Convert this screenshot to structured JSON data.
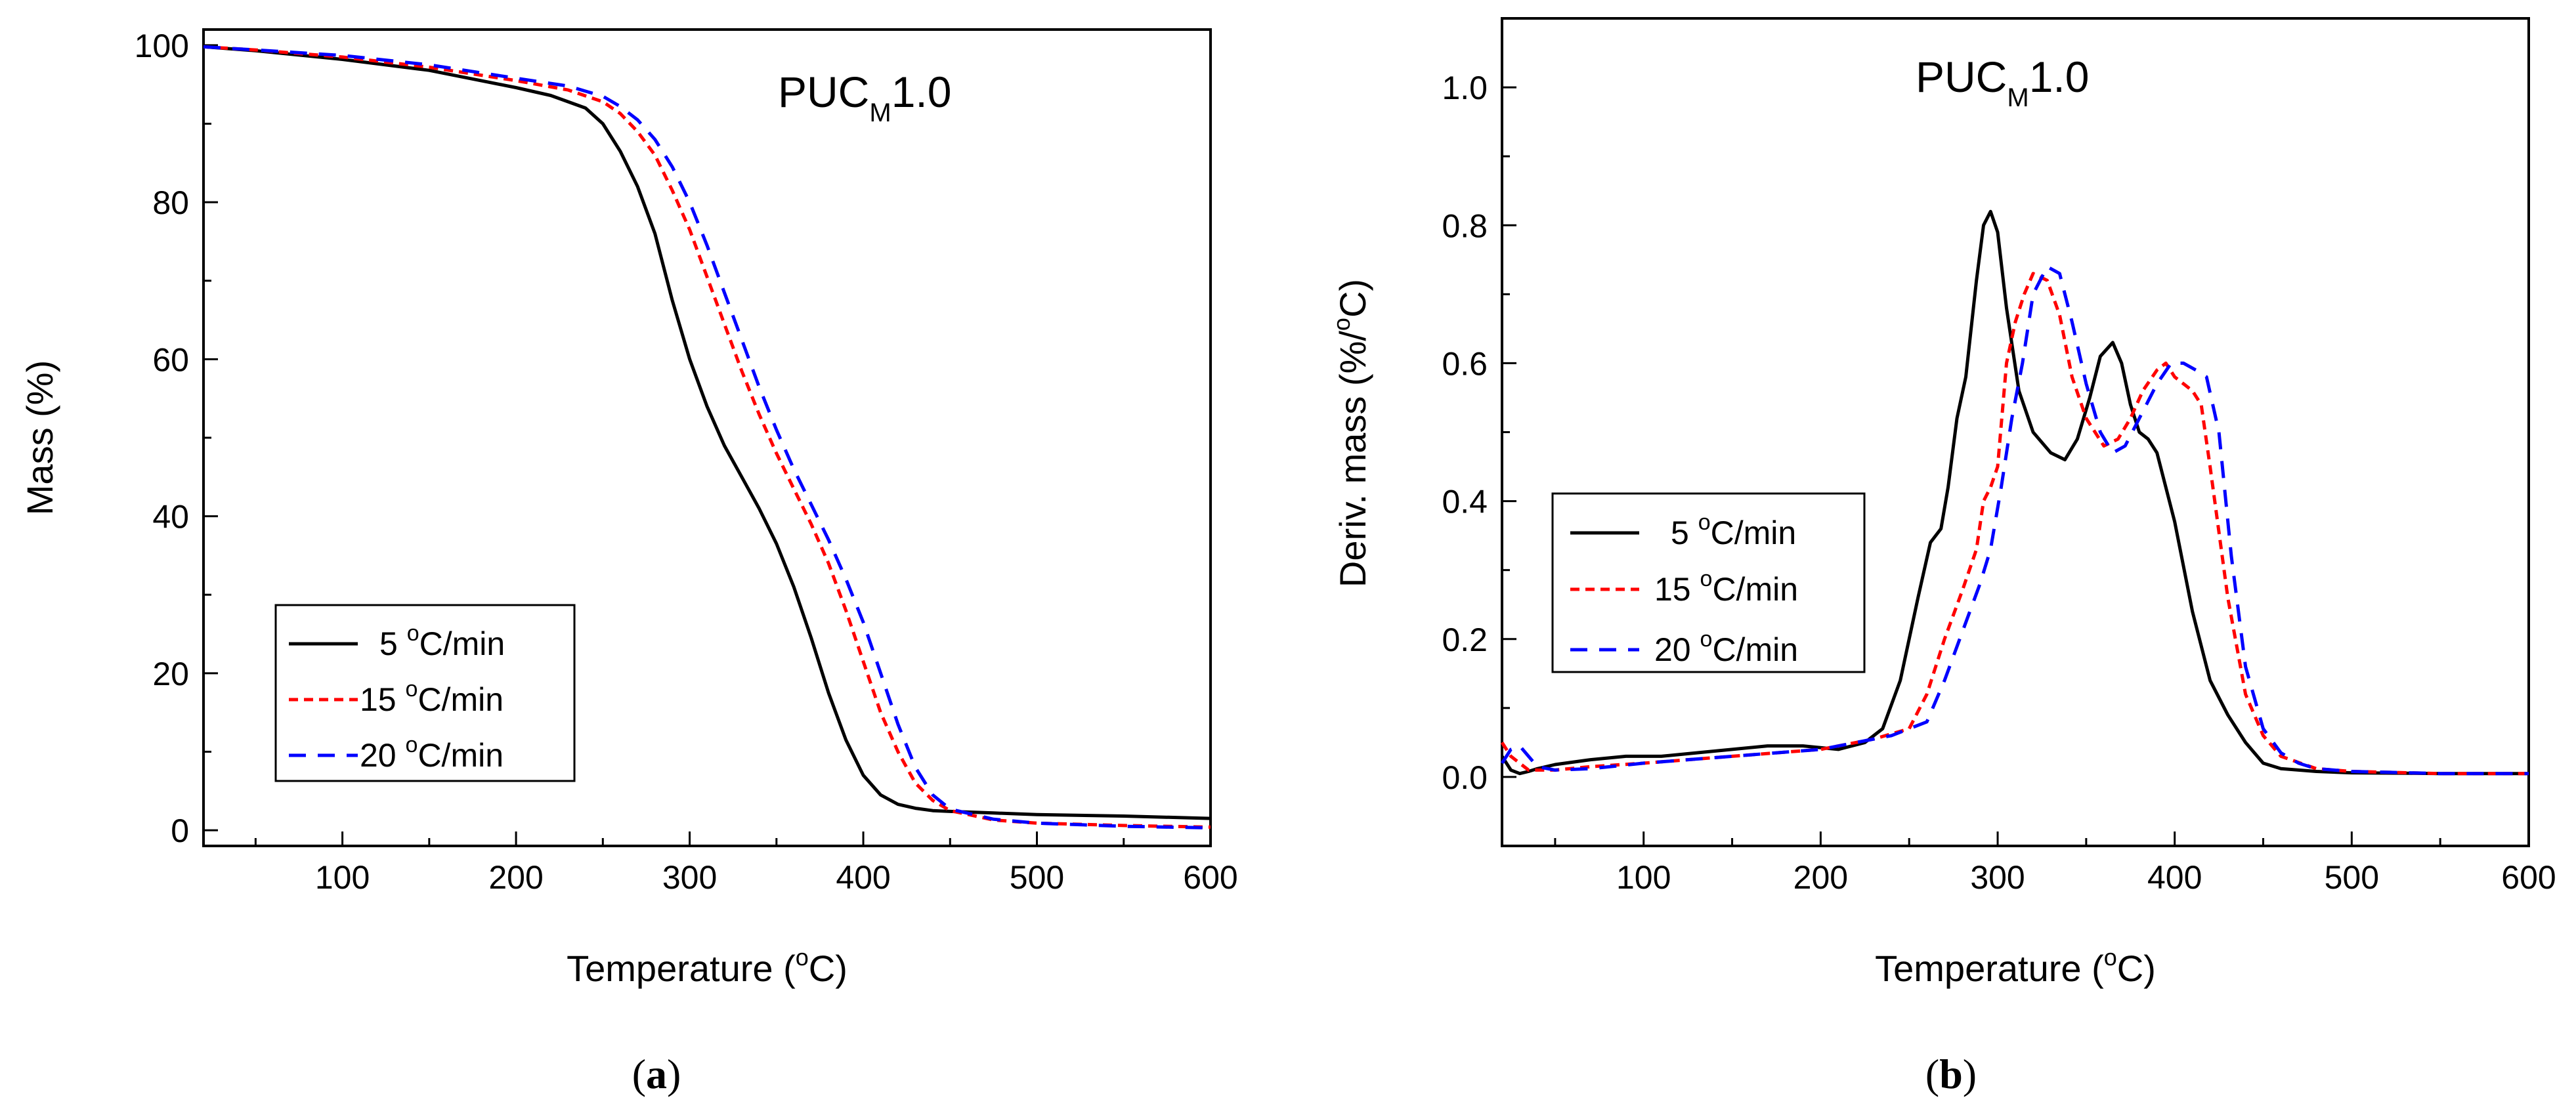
{
  "chart_data": [
    {
      "panel": "a",
      "type": "line",
      "caption": {
        "open": "(",
        "letter": "a",
        "close": ")"
      },
      "title": {
        "main": "PUC",
        "sub": "M",
        "suffix": "1.0"
      },
      "xlabel": {
        "prefix": "Temperature (",
        "sup": "o",
        "suffix": "C)"
      },
      "ylabel": "Mass (%)",
      "xlim": [
        20,
        600
      ],
      "ylim": [
        -2,
        102
      ],
      "xticks": [
        100,
        200,
        300,
        400,
        500,
        600
      ],
      "yticks": [
        0,
        20,
        40,
        60,
        80,
        100
      ],
      "series": [
        {
          "name": "5 °C/min",
          "label": {
            "num": "5 ",
            "sup": "o",
            "unit": "C/min"
          },
          "color": "#000000",
          "dash": "",
          "x": [
            20,
            50,
            100,
            150,
            200,
            220,
            240,
            250,
            260,
            270,
            280,
            290,
            300,
            310,
            320,
            330,
            340,
            350,
            360,
            370,
            380,
            390,
            400,
            410,
            420,
            430,
            440,
            450,
            475,
            500,
            550,
            600
          ],
          "y": [
            99.8,
            99.3,
            98.2,
            96.8,
            94.6,
            93.6,
            92.0,
            90.0,
            86.5,
            82.0,
            76.0,
            67.5,
            60.0,
            54.0,
            49.0,
            45.0,
            41.0,
            36.5,
            31.0,
            24.5,
            17.5,
            11.5,
            7.0,
            4.5,
            3.3,
            2.8,
            2.5,
            2.4,
            2.2,
            2.0,
            1.8,
            1.5
          ]
        },
        {
          "name": "15 °C/min",
          "label": {
            "num": "15 ",
            "sup": "o",
            "unit": "C/min"
          },
          "color": "#ff0000",
          "dash": "14 9",
          "x": [
            20,
            50,
            100,
            150,
            200,
            230,
            250,
            260,
            270,
            280,
            290,
            300,
            310,
            320,
            330,
            340,
            350,
            360,
            370,
            380,
            390,
            400,
            410,
            420,
            430,
            440,
            450,
            475,
            500,
            550,
            600
          ],
          "y": [
            99.8,
            99.4,
            98.5,
            97.2,
            95.5,
            94.3,
            92.8,
            91.3,
            89.0,
            86.0,
            81.5,
            76.5,
            70.5,
            64.5,
            58.5,
            53.0,
            48.0,
            43.5,
            39.0,
            34.0,
            28.0,
            21.5,
            15.0,
            10.0,
            6.0,
            3.8,
            2.5,
            1.3,
            0.9,
            0.6,
            0.4
          ]
        },
        {
          "name": "20 °C/min",
          "label": {
            "num": "20 ",
            "sup": "o",
            "unit": "C/min"
          },
          "color": "#0000ff",
          "dash": "26 18",
          "x": [
            20,
            50,
            100,
            150,
            200,
            230,
            250,
            260,
            270,
            280,
            290,
            300,
            310,
            320,
            330,
            340,
            350,
            360,
            370,
            380,
            390,
            400,
            410,
            420,
            430,
            440,
            450,
            475,
            500,
            550,
            600
          ],
          "y": [
            99.8,
            99.4,
            98.7,
            97.5,
            95.8,
            94.8,
            93.5,
            92.2,
            90.5,
            88.0,
            84.5,
            80.0,
            74.5,
            68.5,
            62.5,
            56.5,
            51.0,
            46.0,
            41.5,
            37.0,
            32.0,
            26.5,
            20.0,
            13.5,
            8.0,
            4.5,
            2.7,
            1.4,
            0.9,
            0.5,
            0.3
          ]
        }
      ]
    },
    {
      "panel": "b",
      "type": "line",
      "caption": {
        "open": "(",
        "letter": "b",
        "close": ")"
      },
      "title": {
        "main": "PUC",
        "sub": "M",
        "suffix": "1.0"
      },
      "xlabel": {
        "prefix": "Temperature (",
        "sup": "o",
        "suffix": "C)"
      },
      "ylabel": {
        "prefix": "Deriv. mass (%/",
        "sup": "o",
        "suffix": "C)"
      },
      "xlim": [
        20,
        600
      ],
      "ylim": [
        -0.1,
        1.1
      ],
      "xticks": [
        100,
        200,
        300,
        400,
        500,
        600
      ],
      "yticks": [
        0.0,
        0.2,
        0.4,
        0.6,
        0.8,
        1.0
      ],
      "ytick_labels": [
        "0.0",
        "0.2",
        "0.4",
        "0.6",
        "0.8",
        "1.0"
      ],
      "series": [
        {
          "name": "5 °C/min",
          "label": {
            "num": "5 ",
            "sup": "o",
            "unit": "C/min"
          },
          "color": "#000000",
          "dash": "",
          "x": [
            20,
            25,
            30,
            35,
            40,
            50,
            70,
            90,
            110,
            130,
            150,
            170,
            190,
            210,
            225,
            235,
            245,
            255,
            262,
            268,
            272,
            277,
            282,
            288,
            292,
            296,
            300,
            305,
            312,
            320,
            330,
            338,
            345,
            352,
            358,
            365,
            370,
            375,
            380,
            385,
            390,
            400,
            410,
            420,
            430,
            440,
            450,
            460,
            480,
            500,
            550,
            600
          ],
          "y": [
            0.03,
            0.01,
            0.005,
            0.008,
            0.012,
            0.018,
            0.025,
            0.03,
            0.03,
            0.035,
            0.04,
            0.045,
            0.045,
            0.04,
            0.05,
            0.07,
            0.14,
            0.26,
            0.34,
            0.36,
            0.42,
            0.52,
            0.58,
            0.72,
            0.8,
            0.82,
            0.79,
            0.68,
            0.56,
            0.5,
            0.47,
            0.46,
            0.49,
            0.55,
            0.61,
            0.63,
            0.6,
            0.54,
            0.5,
            0.49,
            0.47,
            0.37,
            0.24,
            0.14,
            0.09,
            0.05,
            0.02,
            0.012,
            0.008,
            0.006,
            0.005,
            0.005
          ]
        },
        {
          "name": "15 °C/min",
          "label": {
            "num": "15 ",
            "sup": "o",
            "unit": "C/min"
          },
          "color": "#ff0000",
          "dash": "14 9",
          "x": [
            20,
            25,
            35,
            50,
            70,
            100,
            150,
            200,
            230,
            250,
            260,
            270,
            280,
            288,
            292,
            296,
            300,
            305,
            310,
            315,
            320,
            328,
            335,
            342,
            350,
            360,
            368,
            375,
            382,
            390,
            395,
            400,
            405,
            410,
            415,
            420,
            430,
            440,
            450,
            460,
            480,
            500,
            550,
            600
          ],
          "y": [
            0.05,
            0.03,
            0.01,
            0.01,
            0.015,
            0.02,
            0.03,
            0.04,
            0.055,
            0.07,
            0.12,
            0.2,
            0.27,
            0.33,
            0.4,
            0.42,
            0.45,
            0.6,
            0.66,
            0.7,
            0.73,
            0.72,
            0.67,
            0.58,
            0.52,
            0.48,
            0.49,
            0.52,
            0.56,
            0.59,
            0.6,
            0.58,
            0.57,
            0.56,
            0.54,
            0.45,
            0.26,
            0.12,
            0.06,
            0.03,
            0.012,
            0.008,
            0.005,
            0.005
          ]
        },
        {
          "name": "20 °C/min",
          "label": {
            "num": "20 ",
            "sup": "o",
            "unit": "C/min"
          },
          "color": "#0000ff",
          "dash": "26 18",
          "x": [
            20,
            25,
            30,
            35,
            40,
            50,
            70,
            100,
            150,
            200,
            240,
            260,
            270,
            280,
            290,
            296,
            302,
            308,
            314,
            320,
            328,
            335,
            342,
            350,
            358,
            365,
            372,
            380,
            390,
            398,
            405,
            412,
            418,
            425,
            432,
            440,
            450,
            460,
            470,
            480,
            500,
            550,
            600
          ],
          "y": [
            0.02,
            0.04,
            0.045,
            0.03,
            0.015,
            0.01,
            0.012,
            0.02,
            0.03,
            0.04,
            0.06,
            0.08,
            0.14,
            0.21,
            0.28,
            0.33,
            0.42,
            0.52,
            0.6,
            0.7,
            0.74,
            0.73,
            0.66,
            0.57,
            0.5,
            0.47,
            0.48,
            0.52,
            0.57,
            0.6,
            0.6,
            0.59,
            0.58,
            0.5,
            0.32,
            0.16,
            0.07,
            0.035,
            0.02,
            0.012,
            0.008,
            0.005,
            0.005
          ]
        }
      ]
    }
  ]
}
